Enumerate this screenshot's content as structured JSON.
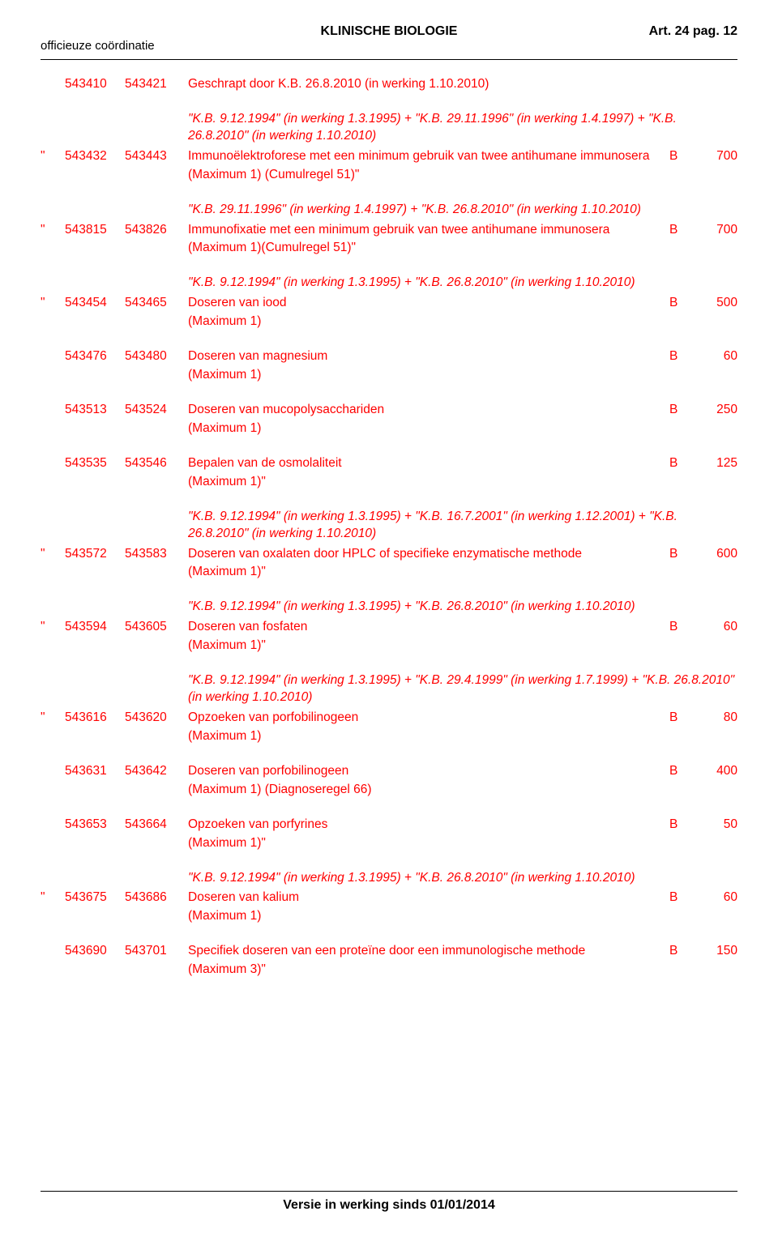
{
  "header": {
    "title": "KLINISCHE BIOLOGIE",
    "right": "Art. 24 pag. 12",
    "left": "officieuze coördinatie"
  },
  "footer": "Versie in werking sinds 01/01/2014",
  "colors": {
    "text_main": "#ff0000",
    "text_black": "#000000",
    "bg": "#ffffff"
  },
  "blocks": [
    {
      "type": "entry",
      "quote": "",
      "code1": "543410",
      "code2": "543421",
      "desc": "Geschrapt door K.B. 26.8.2010 (in werking 1.10.2010)",
      "max": "",
      "cls": "",
      "val": ""
    },
    {
      "type": "note",
      "text": "\"K.B. 9.12.1994\" (in werking 1.3.1995) + \"K.B. 29.11.1996\" (in werking 1.4.1997) + \"K.B. 26.8.2010\" (in werking 1.10.2010)"
    },
    {
      "type": "entry",
      "quote": "\"",
      "code1": "543432",
      "code2": "543443",
      "desc": "Immunoëlektroforese met een minimum gebruik van twee antihumane immunosera",
      "max": "(Maximum 1) (Cumulregel 51)\"",
      "cls": "B",
      "val": "700"
    },
    {
      "type": "note",
      "text": "\"K.B. 29.11.1996\" (in werking 1.4.1997) + \"K.B. 26.8.2010\" (in werking 1.10.2010)"
    },
    {
      "type": "entry",
      "quote": "\"",
      "code1": "543815",
      "code2": "543826",
      "desc": "Immunofixatie met een minimum gebruik van twee antihumane immunosera",
      "max": "(Maximum 1)(Cumulregel 51)\"",
      "cls": "B",
      "val": "700"
    },
    {
      "type": "note",
      "text": "\"K.B. 9.12.1994\" (in werking 1.3.1995) + \"K.B. 26.8.2010\" (in werking 1.10.2010)"
    },
    {
      "type": "entry",
      "quote": "\"",
      "code1": "543454",
      "code2": "543465",
      "desc": "Doseren van iood",
      "max": "(Maximum 1)",
      "cls": "B",
      "val": "500"
    },
    {
      "type": "spacer"
    },
    {
      "type": "entry",
      "quote": "",
      "code1": "543476",
      "code2": "543480",
      "desc": "Doseren van magnesium",
      "max": "(Maximum 1)",
      "cls": "B",
      "val": "60"
    },
    {
      "type": "spacer"
    },
    {
      "type": "entry",
      "quote": "",
      "code1": "543513",
      "code2": "543524",
      "desc": "Doseren van mucopolysacchariden",
      "max": "(Maximum 1)",
      "cls": "B",
      "val": "250"
    },
    {
      "type": "spacer"
    },
    {
      "type": "entry",
      "quote": "",
      "code1": "543535",
      "code2": "543546",
      "desc": "Bepalen van de osmolaliteit",
      "max": "(Maximum 1)\"",
      "cls": "B",
      "val": "125"
    },
    {
      "type": "note",
      "text": "\"K.B. 9.12.1994\" (in werking 1.3.1995) + \"K.B. 16.7.2001\" (in werking 1.12.2001) + \"K.B. 26.8.2010\" (in werking 1.10.2010)"
    },
    {
      "type": "entry",
      "quote": "\"",
      "code1": "543572",
      "code2": "543583",
      "desc": "Doseren van oxalaten door HPLC of specifieke enzymatische methode",
      "max": "(Maximum 1)\"",
      "cls": "B",
      "val": "600"
    },
    {
      "type": "note",
      "text": "\"K.B. 9.12.1994\" (in werking 1.3.1995) + \"K.B. 26.8.2010\" (in werking 1.10.2010)"
    },
    {
      "type": "entry",
      "quote": "\"",
      "code1": "543594",
      "code2": "543605",
      "desc": "Doseren van fosfaten",
      "max": "(Maximum 1)\"",
      "cls": "B",
      "val": "60"
    },
    {
      "type": "note",
      "text": "\"K.B. 9.12.1994\" (in werking 1.3.1995) + \"K.B. 29.4.1999\" (in werking 1.7.1999) + \"K.B. 26.8.2010\" (in werking 1.10.2010)"
    },
    {
      "type": "entry",
      "quote": "\"",
      "code1": "543616",
      "code2": "543620",
      "desc": "Opzoeken van porfobilinogeen",
      "max": "(Maximum 1)",
      "cls": "B",
      "val": "80"
    },
    {
      "type": "spacer"
    },
    {
      "type": "entry",
      "quote": "",
      "code1": "543631",
      "code2": "543642",
      "desc": "Doseren van porfobilinogeen",
      "max": "(Maximum 1) (Diagnoseregel 66)",
      "cls": "B",
      "val": "400"
    },
    {
      "type": "spacer"
    },
    {
      "type": "entry",
      "quote": "",
      "code1": "543653",
      "code2": "543664",
      "desc": "Opzoeken van porfyrines",
      "max": "(Maximum 1)\"",
      "cls": "B",
      "val": "50"
    },
    {
      "type": "note",
      "text": "\"K.B. 9.12.1994\" (in werking 1.3.1995) + \"K.B. 26.8.2010\" (in werking 1.10.2010)"
    },
    {
      "type": "entry",
      "quote": "\"",
      "code1": "543675",
      "code2": "543686",
      "desc": "Doseren van kalium",
      "max": "(Maximum 1)",
      "cls": "B",
      "val": "60"
    },
    {
      "type": "spacer"
    },
    {
      "type": "entry",
      "quote": "",
      "code1": "543690",
      "code2": "543701",
      "desc": "Specifiek doseren van een proteïne door een immunologische methode",
      "max": "(Maximum 3)\"",
      "cls": "B",
      "val": "150"
    }
  ]
}
